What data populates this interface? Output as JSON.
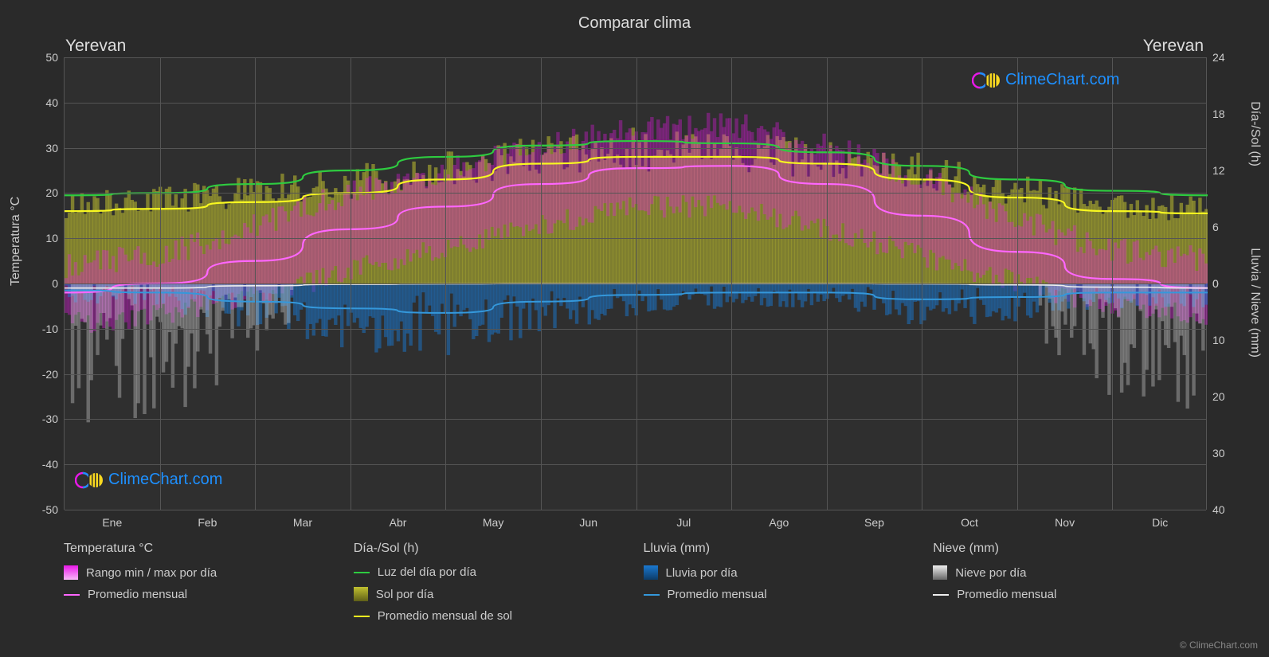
{
  "title": "Comparar clima",
  "location_left": "Yerevan",
  "location_right": "Yerevan",
  "watermark_text": "ClimeChart.com",
  "watermark_color": "#1e90ff",
  "copyright_text": "© ClimeChart.com",
  "background_color": "#2a2a2a",
  "plot_background": "#2f2f2f",
  "grid_color": "#555555",
  "text_color": "#cccccc",
  "axis_left": {
    "label": "Temperatura °C",
    "min": -50,
    "max": 50,
    "ticks": [
      -50,
      -40,
      -30,
      -20,
      -10,
      0,
      10,
      20,
      30,
      40,
      50
    ]
  },
  "axis_right_top": {
    "label": "Día-/Sol (h)",
    "min": 0,
    "max": 24,
    "ticks": [
      0,
      6,
      12,
      18,
      24
    ]
  },
  "axis_right_bottom": {
    "label": "Lluvia / Nieve (mm)",
    "min": 0,
    "max": 40,
    "ticks": [
      0,
      10,
      20,
      30,
      40
    ]
  },
  "x_axis": {
    "months": [
      "Ene",
      "Feb",
      "Mar",
      "Abr",
      "May",
      "Jun",
      "Jul",
      "Ago",
      "Sep",
      "Oct",
      "Nov",
      "Dic"
    ]
  },
  "colors": {
    "temp_range": "#e818e8",
    "temp_range_gradient_top": "#e818e8",
    "temp_range_gradient_bottom": "#f090f0",
    "temp_avg": "#ff66ff",
    "daylight": "#2ecc40",
    "sun_bars": "#c0c030",
    "sun_avg": "#f8f820",
    "rain_bars": "#1a78d0",
    "rain_avg": "#3498db",
    "snow_bars": "#dddddd",
    "snow_avg": "#eeeeee"
  },
  "series": {
    "daylight_line": [
      {
        "x": 0.0,
        "y": 19.5
      },
      {
        "x": 0.083,
        "y": 20.0
      },
      {
        "x": 0.167,
        "y": 22.0
      },
      {
        "x": 0.25,
        "y": 25.0
      },
      {
        "x": 0.333,
        "y": 28.0
      },
      {
        "x": 0.417,
        "y": 30.5
      },
      {
        "x": 0.5,
        "y": 31.5
      },
      {
        "x": 0.583,
        "y": 31.0
      },
      {
        "x": 0.667,
        "y": 29.0
      },
      {
        "x": 0.75,
        "y": 26.0
      },
      {
        "x": 0.833,
        "y": 23.0
      },
      {
        "x": 0.917,
        "y": 20.5
      },
      {
        "x": 1.0,
        "y": 19.5
      }
    ],
    "sun_avg_line": [
      {
        "x": 0.0,
        "y": 16.0
      },
      {
        "x": 0.083,
        "y": 16.5
      },
      {
        "x": 0.167,
        "y": 18.0
      },
      {
        "x": 0.25,
        "y": 20.0
      },
      {
        "x": 0.333,
        "y": 23.0
      },
      {
        "x": 0.417,
        "y": 26.5
      },
      {
        "x": 0.5,
        "y": 28.0
      },
      {
        "x": 0.583,
        "y": 28.0
      },
      {
        "x": 0.667,
        "y": 26.5
      },
      {
        "x": 0.75,
        "y": 23.0
      },
      {
        "x": 0.833,
        "y": 19.0
      },
      {
        "x": 0.917,
        "y": 16.0
      },
      {
        "x": 1.0,
        "y": 15.5
      }
    ],
    "temp_avg_line": [
      {
        "x": 0.0,
        "y": -2.0
      },
      {
        "x": 0.083,
        "y": 0.0
      },
      {
        "x": 0.167,
        "y": 5.0
      },
      {
        "x": 0.25,
        "y": 12.0
      },
      {
        "x": 0.333,
        "y": 17.0
      },
      {
        "x": 0.417,
        "y": 22.0
      },
      {
        "x": 0.5,
        "y": 25.5
      },
      {
        "x": 0.583,
        "y": 26.0
      },
      {
        "x": 0.667,
        "y": 22.0
      },
      {
        "x": 0.75,
        "y": 15.0
      },
      {
        "x": 0.833,
        "y": 7.0
      },
      {
        "x": 0.917,
        "y": 1.0
      },
      {
        "x": 1.0,
        "y": -1.0
      }
    ],
    "rain_avg_line": [
      {
        "x": 0.0,
        "y": -1.5
      },
      {
        "x": 0.083,
        "y": -2.0
      },
      {
        "x": 0.167,
        "y": -4.0
      },
      {
        "x": 0.25,
        "y": -5.5
      },
      {
        "x": 0.333,
        "y": -6.5
      },
      {
        "x": 0.417,
        "y": -4.0
      },
      {
        "x": 0.5,
        "y": -2.5
      },
      {
        "x": 0.583,
        "y": -2.0
      },
      {
        "x": 0.667,
        "y": -2.0
      },
      {
        "x": 0.75,
        "y": -3.5
      },
      {
        "x": 0.833,
        "y": -3.0
      },
      {
        "x": 0.917,
        "y": -2.0
      },
      {
        "x": 1.0,
        "y": -2.0
      }
    ],
    "snow_avg_line": [
      {
        "x": 0.0,
        "y": -1.0
      },
      {
        "x": 0.083,
        "y": -1.0
      },
      {
        "x": 0.167,
        "y": -0.5
      },
      {
        "x": 0.25,
        "y": -0.2
      },
      {
        "x": 0.333,
        "y": -0.1
      },
      {
        "x": 0.417,
        "y": -0.05
      },
      {
        "x": 0.5,
        "y": -0.05
      },
      {
        "x": 0.583,
        "y": -0.05
      },
      {
        "x": 0.667,
        "y": -0.05
      },
      {
        "x": 0.75,
        "y": -0.1
      },
      {
        "x": 0.833,
        "y": -0.3
      },
      {
        "x": 0.917,
        "y": -0.8
      },
      {
        "x": 1.0,
        "y": -1.0
      }
    ],
    "temp_range_band": {
      "top": [
        {
          "x": 0.0,
          "y": 3
        },
        {
          "x": 0.083,
          "y": 5
        },
        {
          "x": 0.167,
          "y": 12
        },
        {
          "x": 0.25,
          "y": 19
        },
        {
          "x": 0.333,
          "y": 24
        },
        {
          "x": 0.417,
          "y": 29
        },
        {
          "x": 0.5,
          "y": 33
        },
        {
          "x": 0.583,
          "y": 34
        },
        {
          "x": 0.667,
          "y": 29
        },
        {
          "x": 0.75,
          "y": 22
        },
        {
          "x": 0.833,
          "y": 13
        },
        {
          "x": 0.917,
          "y": 6
        },
        {
          "x": 1.0,
          "y": 4
        }
      ],
      "bottom": [
        {
          "x": 0.0,
          "y": -8
        },
        {
          "x": 0.083,
          "y": -6
        },
        {
          "x": 0.167,
          "y": -2
        },
        {
          "x": 0.25,
          "y": 4
        },
        {
          "x": 0.333,
          "y": 9
        },
        {
          "x": 0.417,
          "y": 14
        },
        {
          "x": 0.5,
          "y": 18
        },
        {
          "x": 0.583,
          "y": 18
        },
        {
          "x": 0.667,
          "y": 13
        },
        {
          "x": 0.75,
          "y": 7
        },
        {
          "x": 0.833,
          "y": 1
        },
        {
          "x": 0.917,
          "y": -4
        },
        {
          "x": 1.0,
          "y": -6
        }
      ]
    },
    "sun_band": {
      "top": [
        {
          "x": 0.0,
          "y": 17
        },
        {
          "x": 0.083,
          "y": 18
        },
        {
          "x": 0.167,
          "y": 20
        },
        {
          "x": 0.25,
          "y": 22
        },
        {
          "x": 0.333,
          "y": 25
        },
        {
          "x": 0.417,
          "y": 28
        },
        {
          "x": 0.5,
          "y": 29
        },
        {
          "x": 0.583,
          "y": 29
        },
        {
          "x": 0.667,
          "y": 27
        },
        {
          "x": 0.75,
          "y": 24
        },
        {
          "x": 0.833,
          "y": 20
        },
        {
          "x": 0.917,
          "y": 17
        },
        {
          "x": 1.0,
          "y": 16
        }
      ]
    }
  },
  "legend": {
    "cols": [
      {
        "header": "Temperatura °C",
        "items": [
          {
            "type": "swatch-gradient",
            "color_top": "#e818e8",
            "color_bottom": "#f7b8f7",
            "label": "Rango min / max por día"
          },
          {
            "type": "line",
            "color": "#ff66ff",
            "label": "Promedio mensual"
          }
        ]
      },
      {
        "header": "Día-/Sol (h)",
        "items": [
          {
            "type": "line",
            "color": "#2ecc40",
            "label": "Luz del día por día"
          },
          {
            "type": "swatch-gradient",
            "color_top": "#c0c030",
            "color_bottom": "#606018",
            "label": "Sol por día"
          },
          {
            "type": "line",
            "color": "#f8f820",
            "label": "Promedio mensual de sol"
          }
        ]
      },
      {
        "header": "Lluvia (mm)",
        "items": [
          {
            "type": "swatch-gradient",
            "color_top": "#1a78d0",
            "color_bottom": "#0d3c68",
            "label": "Lluvia por día"
          },
          {
            "type": "line",
            "color": "#3498db",
            "label": "Promedio mensual"
          }
        ]
      },
      {
        "header": "Nieve (mm)",
        "items": [
          {
            "type": "swatch-gradient",
            "color_top": "#eeeeee",
            "color_bottom": "#666666",
            "label": "Nieve por día"
          },
          {
            "type": "line",
            "color": "#eeeeee",
            "label": "Promedio mensual"
          }
        ]
      }
    ]
  }
}
